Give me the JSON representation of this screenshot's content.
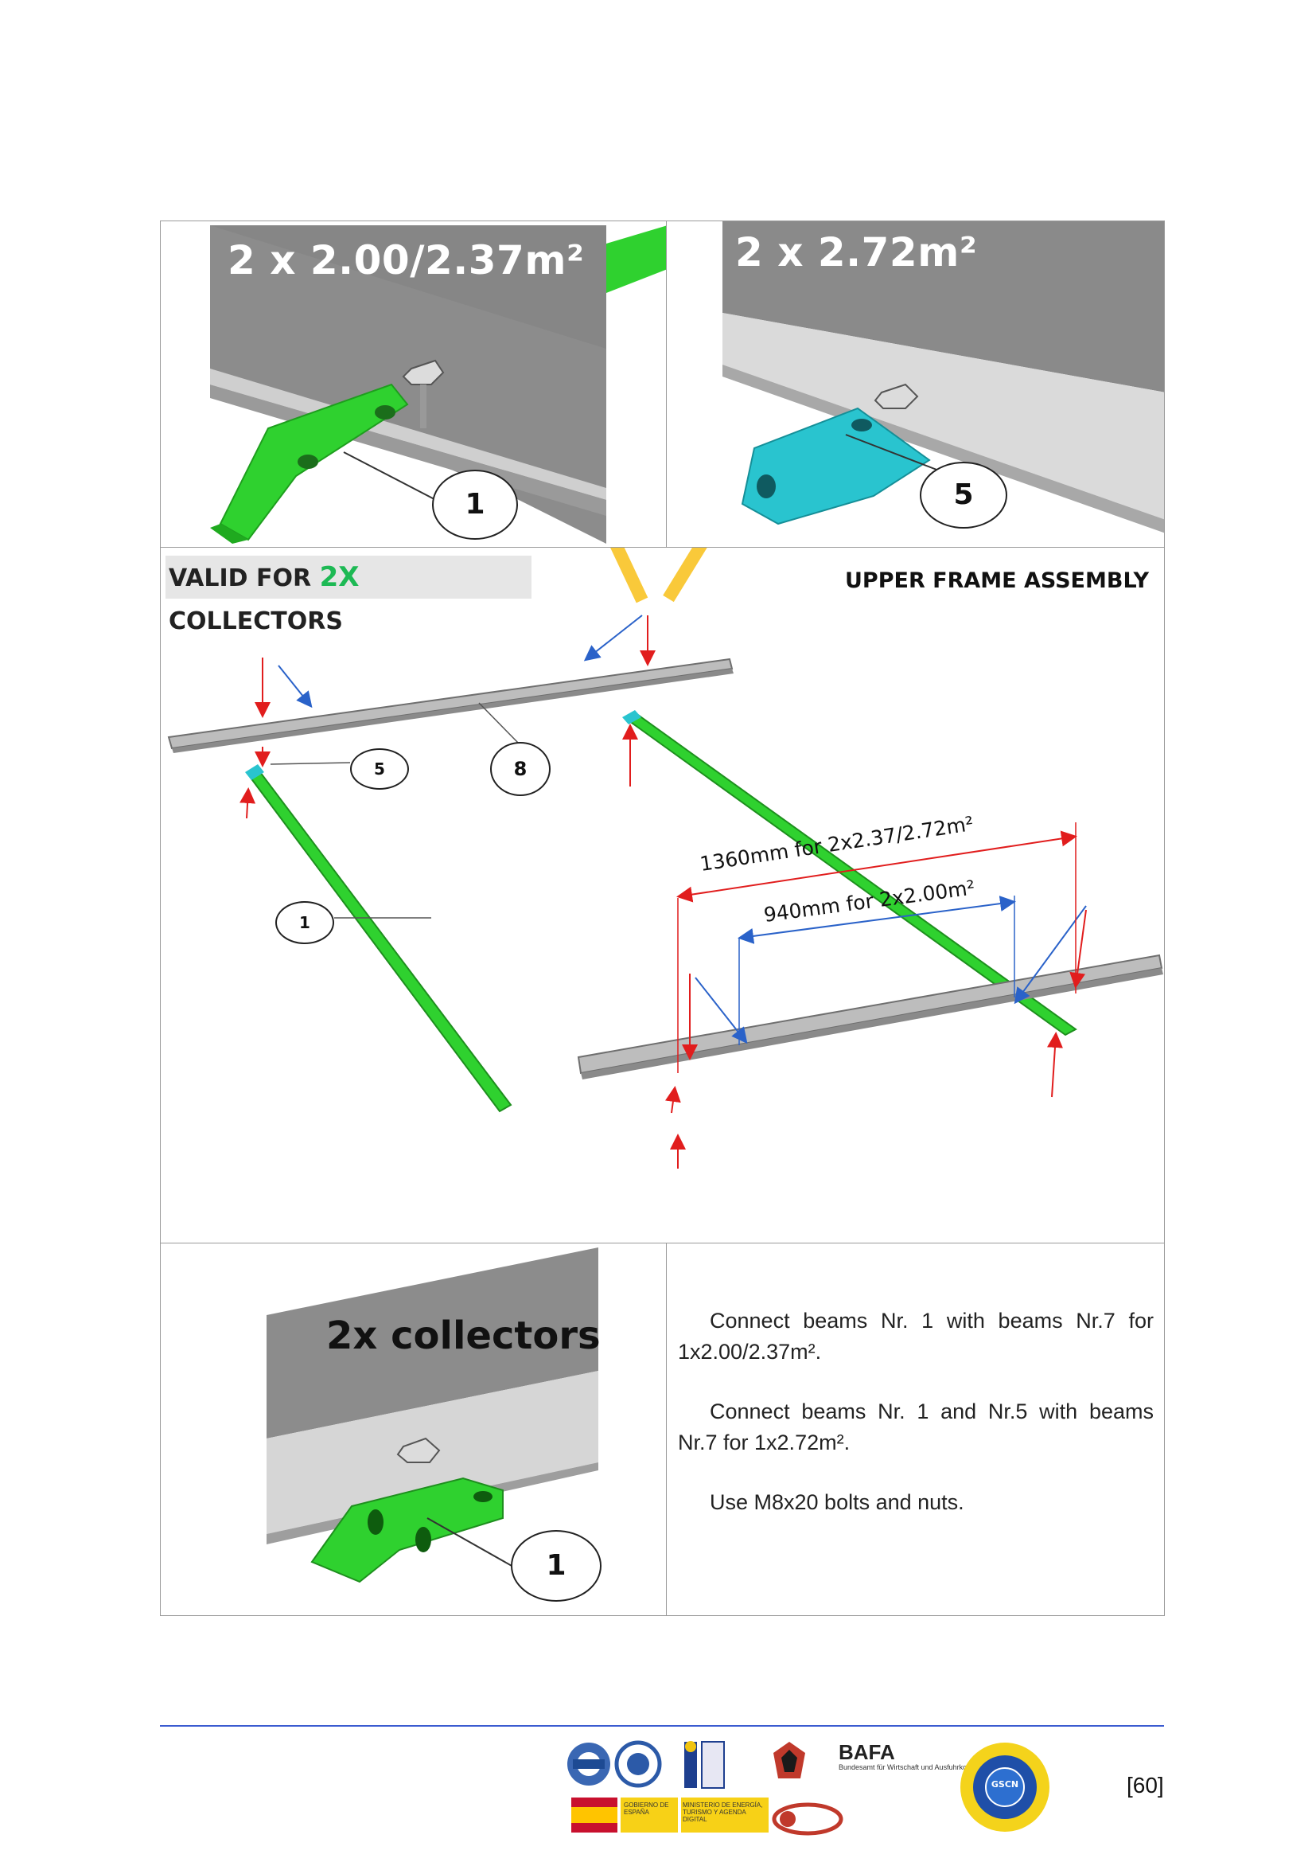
{
  "panels": {
    "top_left_title": "2 x 2.00/2.37m²",
    "top_right_title": "2 x 2.72m²",
    "bottom_left_title": "2x collectors",
    "callout_1": "1",
    "callout_5": "5",
    "callout_8": "8"
  },
  "assembly": {
    "valid_prefix": "VALID FOR ",
    "valid_accent": "2X",
    "valid_suffix": " COLLECTORS",
    "title": "UPPER FRAME ASSEMBLY",
    "dim_long": "1360mm for 2x2.37/2.72m²",
    "dim_short": "940mm for 2x2.00m²"
  },
  "instructions": [
    "Connect beams Nr. 1 with beams Nr.7 for 1x2.00/2.37m².",
    "Connect beams Nr. 1 and Nr.5 with beams Nr.7 for 1x2.72m².",
    "Use M8x20 bolts and nuts."
  ],
  "footer": {
    "page_number": "[60]",
    "bafa_title": "BAFA",
    "bafa_subtitle": "Bundesamt für Wirtschaft und Ausfuhrkontrolle",
    "gov_label": "GOBIERNO DE ESPAÑA",
    "ministry_label": "MINISTERIO DE ENERGÍA, TURISMO Y AGENDA DIGITAL",
    "gscn_label": "GSCN"
  },
  "colors": {
    "beam_green": "#2fd12f",
    "beam_cyan": "#29c4cf",
    "steel": "#b8b8b8",
    "arrow_yellow": "#f9c93a",
    "dim_red": "#e11d1d",
    "dim_blue": "#2a62c9",
    "footer_line": "#3b5bd0"
  }
}
